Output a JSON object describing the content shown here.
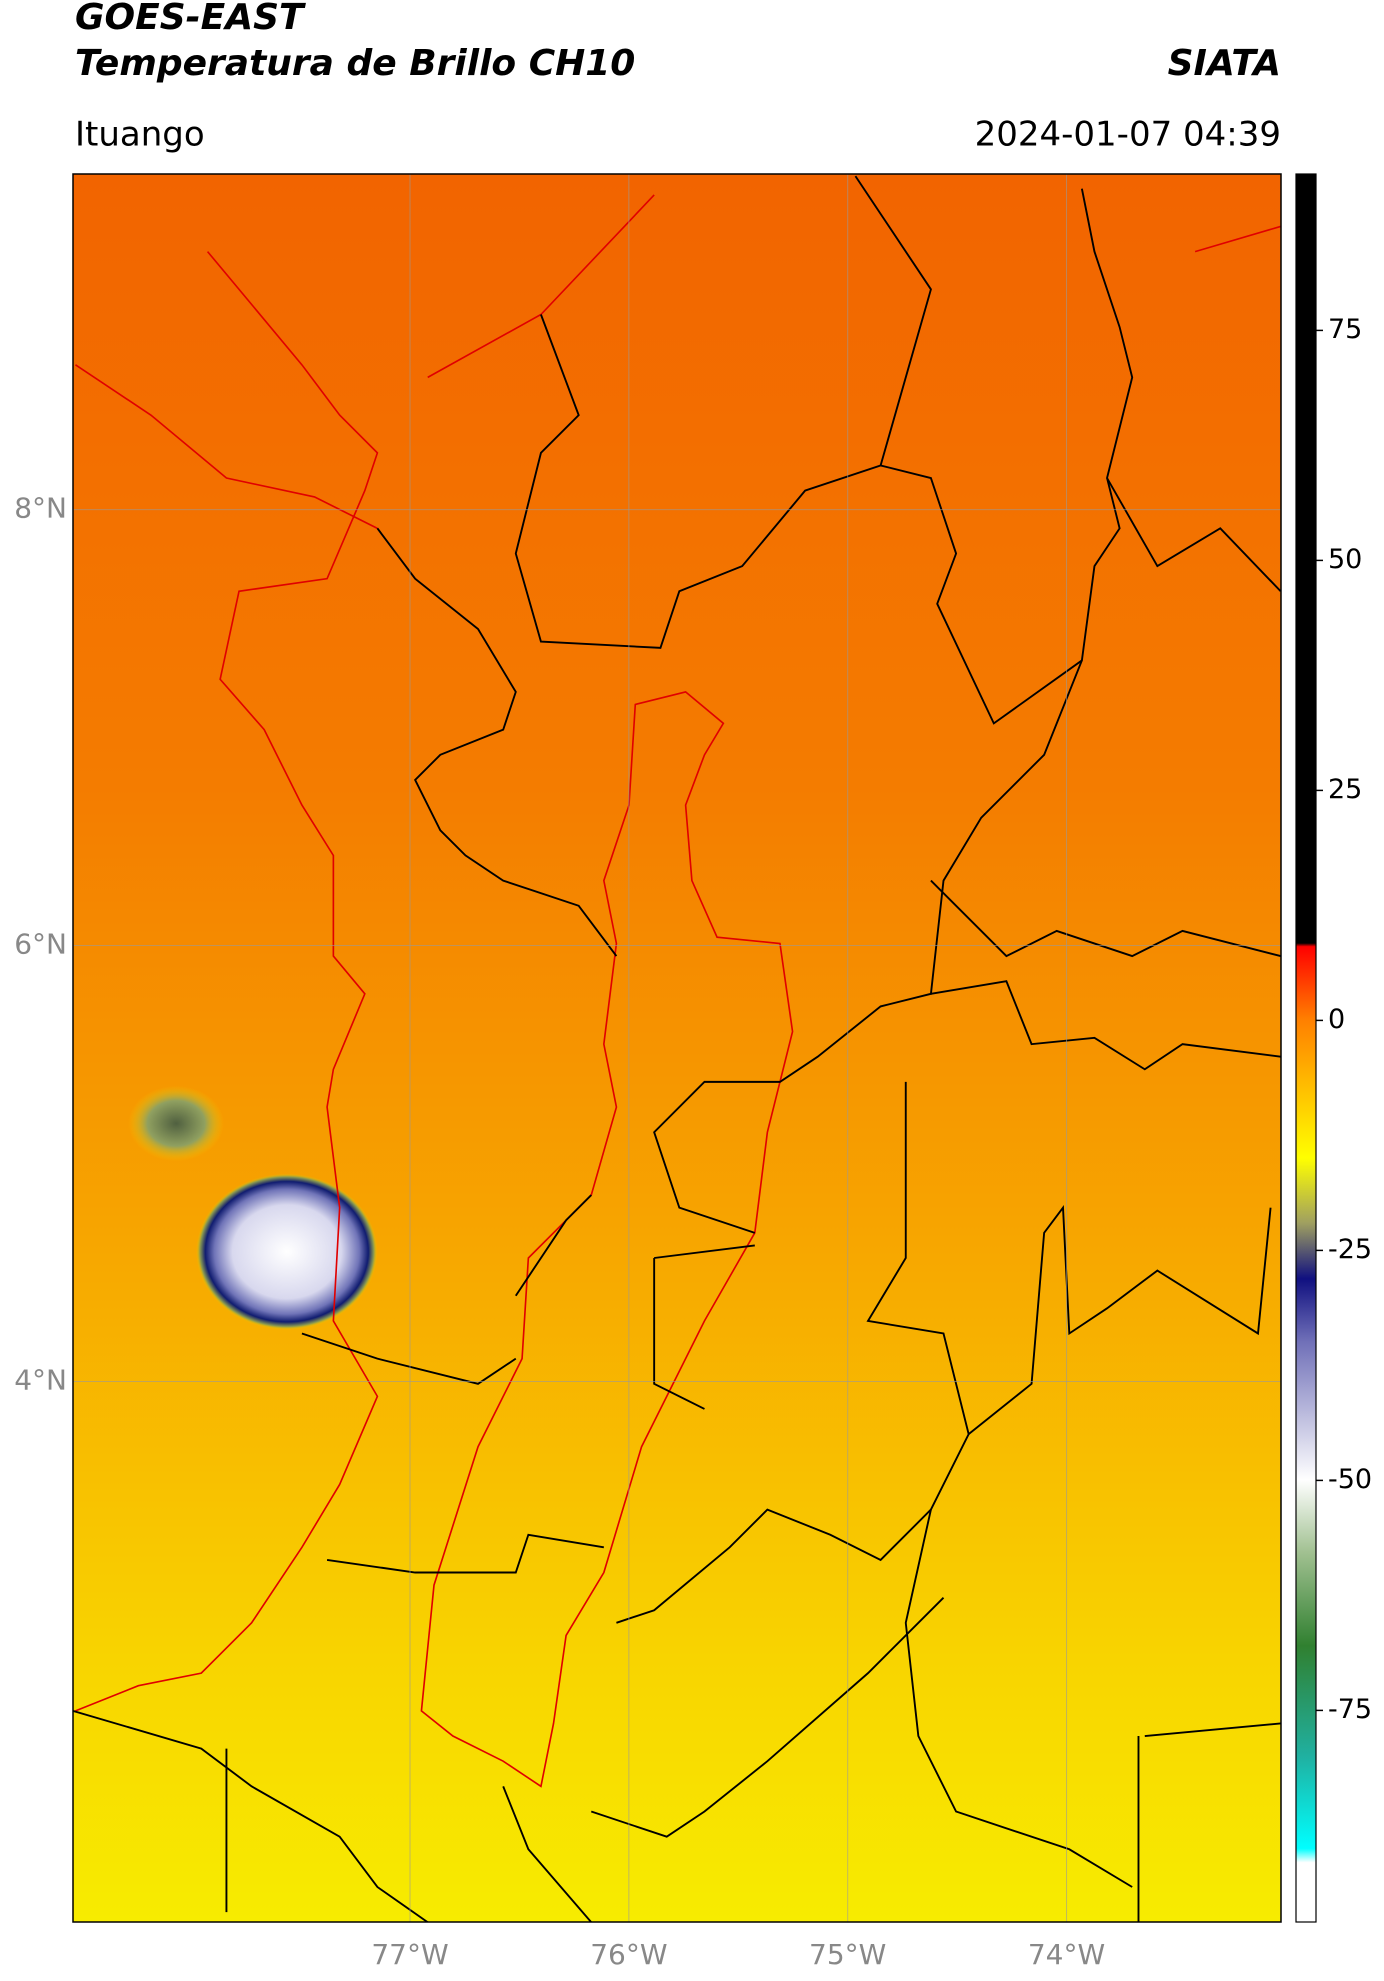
{
  "header": {
    "title": "GOES-EAST",
    "subtitle": "Temperatura de Brillo CH10",
    "source": "SIATA",
    "location": "Ituango",
    "datetime": "2024-01-07 04:39"
  },
  "map": {
    "xlim": [
      -78.54,
      -73.02
    ],
    "ylim": [
      1.52,
      9.54
    ],
    "xticks": [
      {
        "value": -77,
        "label": "77°W"
      },
      {
        "value": -76,
        "label": "76°W"
      },
      {
        "value": -75,
        "label": "75°W"
      },
      {
        "value": -74,
        "label": "74°W"
      }
    ],
    "yticks": [
      {
        "value": 4,
        "label": "4°N"
      },
      {
        "value": 6,
        "label": "6°N"
      },
      {
        "value": 8,
        "label": "8°N"
      }
    ],
    "grid": true
  },
  "colorbar": {
    "lim": [
      -98,
      92
    ],
    "ticks": [
      -75,
      -50,
      -25,
      0,
      25,
      50,
      75
    ]
  }
}
